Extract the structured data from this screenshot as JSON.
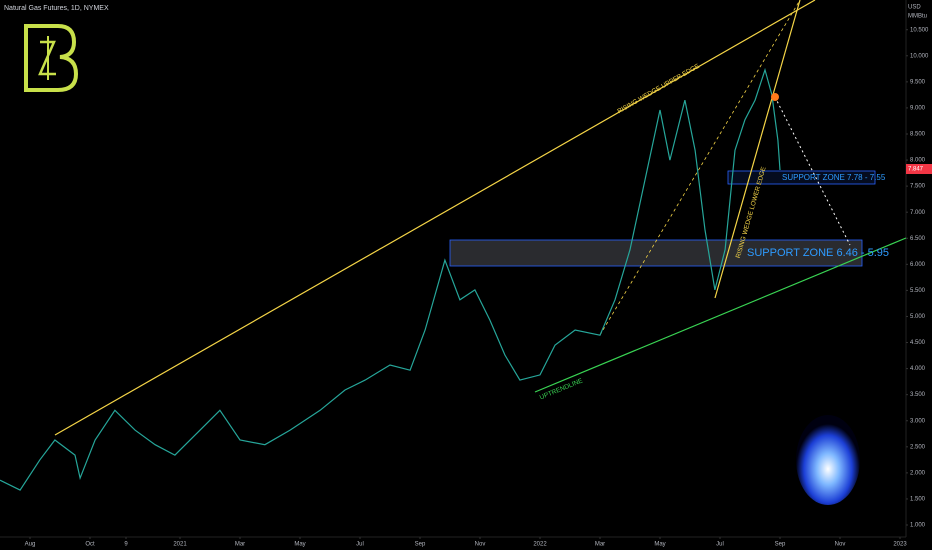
{
  "chart_data": {
    "type": "line",
    "title": "Natural Gas Futures, 1D, NYMEX",
    "y_unit": "USD",
    "y_unit_sub": "MMBtu",
    "last_price": "7.847",
    "annotations": [
      "RISING WEDGE UPPER EDGE",
      "RISING WEDGE LOWER EDGE",
      "SUPPORT ZONE 7.78 - 7.55",
      "SUPPORT ZONE 6.46 - 5.95",
      "UPTRENDLINE"
    ],
    "grid": false,
    "xlim": [
      -1,
      29.2
    ],
    "xticks": [
      {
        "value": 0,
        "label": "Aug"
      },
      {
        "value": 2,
        "label": "Oct"
      },
      {
        "value": 3.2,
        "label": "9"
      },
      {
        "value": 5,
        "label": "2021"
      },
      {
        "value": 7,
        "label": "Mar"
      },
      {
        "value": 9,
        "label": "May"
      },
      {
        "value": 11,
        "label": "Jul"
      },
      {
        "value": 13,
        "label": "Sep"
      },
      {
        "value": 15,
        "label": "Nov"
      },
      {
        "value": 17,
        "label": "2022"
      },
      {
        "value": 19,
        "label": "Mar"
      },
      {
        "value": 21,
        "label": "May"
      },
      {
        "value": 23,
        "label": "Jul"
      },
      {
        "value": 25,
        "label": "Sep"
      },
      {
        "value": 27,
        "label": "Nov"
      },
      {
        "value": 29,
        "label": "2023"
      }
    ],
    "ylim": [
      0.77,
      11.07
    ],
    "yticks": [
      {
        "value": 1,
        "label": "1.000"
      },
      {
        "value": 1.5,
        "label": "1.500"
      },
      {
        "value": 2,
        "label": "2.000"
      },
      {
        "value": 2.5,
        "label": "2.500"
      },
      {
        "value": 3,
        "label": "3.000"
      },
      {
        "value": 3.5,
        "label": "3.500"
      },
      {
        "value": 4,
        "label": "4.000"
      },
      {
        "value": 4.5,
        "label": "4.500"
      },
      {
        "value": 5,
        "label": "5.000"
      },
      {
        "value": 5.5,
        "label": "5.500"
      },
      {
        "value": 6,
        "label": "6.000"
      },
      {
        "value": 6.5,
        "label": "6.500"
      },
      {
        "value": 7,
        "label": "7.000"
      },
      {
        "value": 7.5,
        "label": "7.500"
      },
      {
        "value": 8,
        "label": "8.000"
      },
      {
        "value": 8.5,
        "label": "8.500"
      },
      {
        "value": 9,
        "label": "9.000"
      },
      {
        "value": 9.5,
        "label": "9.500"
      },
      {
        "value": 10,
        "label": "10.000"
      },
      {
        "value": 10.5,
        "label": "10.500"
      }
    ],
    "series": [
      {
        "color": "#26a69a",
        "x": [
          -1,
          -0.33,
          0.33,
          0.83,
          1.5,
          1.67,
          2.17,
          2.83,
          3.5,
          4.17,
          4.83,
          5.67,
          6.33,
          7,
          7.83,
          8.67,
          9.67,
          10.5,
          11.17,
          12,
          12.67,
          13.17,
          13.83,
          14.33,
          14.83,
          15.33,
          15.83,
          16.33,
          17,
          17.5,
          18.17,
          19,
          19.5,
          20,
          20.5,
          21,
          21.33,
          21.83,
          22.17,
          22.5,
          22.83,
          23.17,
          23.5,
          23.83,
          24.17,
          24.5,
          24.73,
          24.93,
          25
        ],
        "values": [
          1.86,
          1.67,
          2.25,
          2.63,
          2.34,
          1.9,
          2.63,
          3.2,
          2.82,
          2.54,
          2.34,
          2.82,
          3.2,
          2.63,
          2.54,
          2.82,
          3.2,
          3.59,
          3.78,
          4.07,
          3.97,
          4.74,
          6.08,
          5.32,
          5.51,
          4.93,
          4.26,
          3.78,
          3.88,
          4.45,
          4.74,
          4.64,
          5.32,
          6.28,
          7.62,
          8.96,
          8.0,
          9.15,
          8.19,
          6.66,
          5.51,
          6.28,
          8.19,
          8.77,
          9.15,
          9.73,
          9.25,
          8.38,
          7.81
        ]
      }
    ]
  }
}
